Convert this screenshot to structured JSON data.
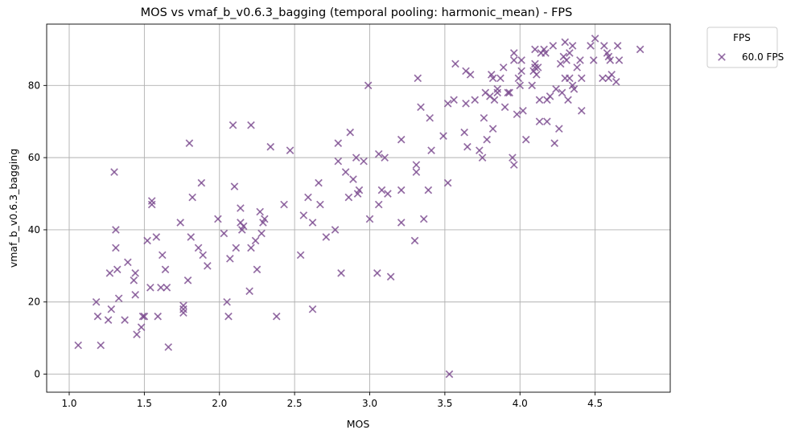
{
  "chart_data": {
    "type": "scatter",
    "title": "MOS vs vmaf_b_v0.6.3_bagging (temporal pooling: harmonic_mean) - FPS",
    "xlabel": "MOS",
    "ylabel": "vmaf_b_v0.6.3_bagging",
    "xlim": [
      0.85,
      5.0
    ],
    "ylim": [
      -5,
      97
    ],
    "xticks": [
      1.0,
      1.5,
      2.0,
      2.5,
      3.0,
      3.5,
      4.0,
      4.5
    ],
    "xtick_labels": [
      "1.0",
      "1.5",
      "2.0",
      "2.5",
      "3.0",
      "3.5",
      "4.0",
      "4.5"
    ],
    "yticks": [
      0,
      20,
      40,
      60,
      80
    ],
    "ytick_labels": [
      "0",
      "20",
      "40",
      "60",
      "80"
    ],
    "grid": true,
    "legend": {
      "title": "FPS",
      "placement": "outside-top-right"
    },
    "marker": "x",
    "color": "#7b4a8e",
    "series": [
      {
        "name": "60.0 FPS",
        "points": [
          [
            1.06,
            8
          ],
          [
            1.18,
            20
          ],
          [
            1.19,
            16
          ],
          [
            1.21,
            8
          ],
          [
            1.26,
            15
          ],
          [
            1.27,
            28
          ],
          [
            1.28,
            18
          ],
          [
            1.3,
            56
          ],
          [
            1.31,
            40
          ],
          [
            1.31,
            35
          ],
          [
            1.32,
            29
          ],
          [
            1.33,
            21
          ],
          [
            1.37,
            15
          ],
          [
            1.39,
            31
          ],
          [
            1.43,
            26
          ],
          [
            1.44,
            28
          ],
          [
            1.44,
            22
          ],
          [
            1.45,
            11
          ],
          [
            1.48,
            13
          ],
          [
            1.49,
            16
          ],
          [
            1.5,
            16
          ],
          [
            1.52,
            37
          ],
          [
            1.54,
            24
          ],
          [
            1.55,
            48
          ],
          [
            1.55,
            47
          ],
          [
            1.58,
            38
          ],
          [
            1.59,
            16
          ],
          [
            1.61,
            24
          ],
          [
            1.62,
            33
          ],
          [
            1.64,
            29
          ],
          [
            1.65,
            24
          ],
          [
            1.66,
            7.5
          ],
          [
            1.74,
            42
          ],
          [
            1.76,
            17
          ],
          [
            1.76,
            19
          ],
          [
            1.76,
            18
          ],
          [
            1.79,
            26
          ],
          [
            1.8,
            64
          ],
          [
            1.81,
            38
          ],
          [
            1.82,
            49
          ],
          [
            1.86,
            35
          ],
          [
            1.88,
            53
          ],
          [
            1.89,
            33
          ],
          [
            1.92,
            30
          ],
          [
            1.99,
            43
          ],
          [
            2.03,
            39
          ],
          [
            2.05,
            20
          ],
          [
            2.06,
            16
          ],
          [
            2.07,
            32
          ],
          [
            2.09,
            69
          ],
          [
            2.1,
            52
          ],
          [
            2.11,
            35
          ],
          [
            2.14,
            46
          ],
          [
            2.14,
            42
          ],
          [
            2.15,
            40
          ],
          [
            2.16,
            41
          ],
          [
            2.2,
            23
          ],
          [
            2.21,
            35
          ],
          [
            2.21,
            69
          ],
          [
            2.24,
            37
          ],
          [
            2.25,
            29
          ],
          [
            2.27,
            45
          ],
          [
            2.28,
            39
          ],
          [
            2.29,
            42
          ],
          [
            2.3,
            43
          ],
          [
            2.34,
            63
          ],
          [
            2.38,
            16
          ],
          [
            2.43,
            47
          ],
          [
            2.47,
            62
          ],
          [
            2.54,
            33
          ],
          [
            2.56,
            44
          ],
          [
            2.59,
            49
          ],
          [
            2.62,
            18
          ],
          [
            2.62,
            42
          ],
          [
            2.66,
            53
          ],
          [
            2.67,
            47
          ],
          [
            2.71,
            38
          ],
          [
            2.77,
            40
          ],
          [
            2.79,
            64
          ],
          [
            2.79,
            59
          ],
          [
            2.81,
            28
          ],
          [
            2.84,
            56
          ],
          [
            2.86,
            49
          ],
          [
            2.87,
            67
          ],
          [
            2.89,
            54
          ],
          [
            2.91,
            60
          ],
          [
            2.92,
            50
          ],
          [
            2.93,
            51
          ],
          [
            2.96,
            59
          ],
          [
            2.99,
            80
          ],
          [
            3.0,
            43
          ],
          [
            3.05,
            28
          ],
          [
            3.06,
            61
          ],
          [
            3.06,
            47
          ],
          [
            3.08,
            51
          ],
          [
            3.1,
            60
          ],
          [
            3.12,
            50
          ],
          [
            3.14,
            27
          ],
          [
            3.21,
            65
          ],
          [
            3.21,
            51
          ],
          [
            3.21,
            42
          ],
          [
            3.3,
            37
          ],
          [
            3.31,
            56
          ],
          [
            3.31,
            58
          ],
          [
            3.32,
            82
          ],
          [
            3.34,
            74
          ],
          [
            3.36,
            43
          ],
          [
            3.39,
            51
          ],
          [
            3.4,
            71
          ],
          [
            3.41,
            62
          ],
          [
            3.49,
            66
          ],
          [
            3.52,
            75
          ],
          [
            3.52,
            53
          ],
          [
            3.53,
            0
          ],
          [
            3.56,
            76
          ],
          [
            3.57,
            86
          ],
          [
            3.63,
            67
          ],
          [
            3.64,
            84
          ],
          [
            3.64,
            75
          ],
          [
            3.65,
            63
          ],
          [
            3.67,
            83
          ],
          [
            3.7,
            76
          ],
          [
            3.73,
            62
          ],
          [
            3.75,
            60
          ],
          [
            3.76,
            71
          ],
          [
            3.77,
            78
          ],
          [
            3.78,
            65
          ],
          [
            3.8,
            77
          ],
          [
            3.81,
            83
          ],
          [
            3.82,
            68
          ],
          [
            3.82,
            82
          ],
          [
            3.83,
            76
          ],
          [
            3.85,
            78
          ],
          [
            3.85,
            79
          ],
          [
            3.87,
            82
          ],
          [
            3.89,
            85
          ],
          [
            3.9,
            74
          ],
          [
            3.92,
            78
          ],
          [
            3.93,
            78
          ],
          [
            3.95,
            60
          ],
          [
            3.96,
            58
          ],
          [
            3.96,
            89
          ],
          [
            3.96,
            87
          ],
          [
            3.98,
            72
          ],
          [
            3.99,
            82
          ],
          [
            4.0,
            80
          ],
          [
            4.01,
            84
          ],
          [
            4.01,
            87
          ],
          [
            4.02,
            73
          ],
          [
            4.04,
            65
          ],
          [
            4.08,
            80
          ],
          [
            4.09,
            84
          ],
          [
            4.1,
            85
          ],
          [
            4.1,
            86
          ],
          [
            4.1,
            90
          ],
          [
            4.11,
            83
          ],
          [
            4.12,
            85
          ],
          [
            4.13,
            76
          ],
          [
            4.13,
            70
          ],
          [
            4.14,
            89
          ],
          [
            4.16,
            90
          ],
          [
            4.17,
            89
          ],
          [
            4.18,
            76
          ],
          [
            4.18,
            70
          ],
          [
            4.2,
            77
          ],
          [
            4.22,
            91
          ],
          [
            4.23,
            64
          ],
          [
            4.24,
            79
          ],
          [
            4.26,
            68
          ],
          [
            4.27,
            86
          ],
          [
            4.28,
            78
          ],
          [
            4.29,
            88
          ],
          [
            4.3,
            82
          ],
          [
            4.3,
            92
          ],
          [
            4.31,
            87
          ],
          [
            4.32,
            76
          ],
          [
            4.33,
            82
          ],
          [
            4.33,
            89
          ],
          [
            4.35,
            91
          ],
          [
            4.35,
            80
          ],
          [
            4.36,
            79
          ],
          [
            4.38,
            85
          ],
          [
            4.4,
            87
          ],
          [
            4.41,
            82
          ],
          [
            4.41,
            73
          ],
          [
            4.47,
            91
          ],
          [
            4.49,
            87
          ],
          [
            4.5,
            93
          ],
          [
            4.55,
            82
          ],
          [
            4.56,
            91
          ],
          [
            4.58,
            89
          ],
          [
            4.59,
            82
          ],
          [
            4.59,
            88
          ],
          [
            4.6,
            87
          ],
          [
            4.61,
            83
          ],
          [
            4.64,
            81
          ],
          [
            4.65,
            91
          ],
          [
            4.66,
            87
          ],
          [
            4.8,
            90
          ]
        ]
      }
    ]
  }
}
